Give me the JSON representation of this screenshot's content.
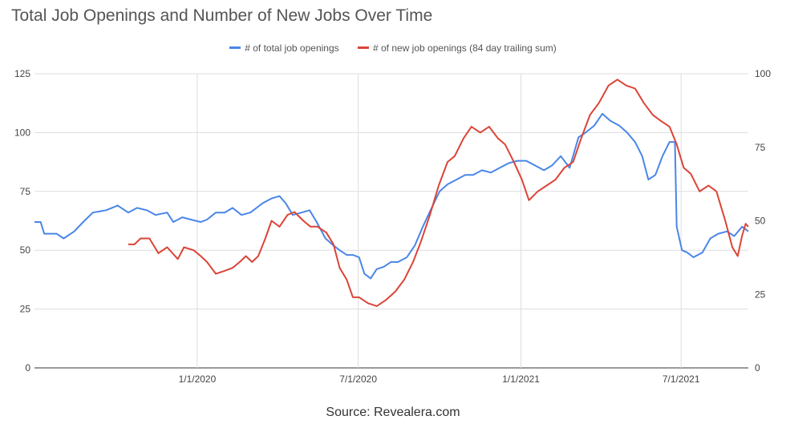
{
  "chart_data": {
    "type": "line",
    "title": "Total Job Openings and Number of New Jobs Over Time",
    "source": "Source: Revealera.com",
    "x_range": [
      "2019-07-01",
      "2021-09-15"
    ],
    "x_ticks": [
      {
        "label": "1/1/2020",
        "date": "2020-01-01"
      },
      {
        "label": "7/1/2020",
        "date": "2020-07-01"
      },
      {
        "label": "1/1/2021",
        "date": "2021-01-01"
      },
      {
        "label": "7/1/2021",
        "date": "2021-07-01"
      }
    ],
    "y_left": {
      "ylim": [
        0,
        125
      ],
      "ticks": [
        0,
        25,
        50,
        75,
        100,
        125
      ]
    },
    "y_right": {
      "ylim": [
        0,
        100
      ],
      "ticks": [
        0,
        25,
        50,
        75,
        100
      ]
    },
    "grid": true,
    "legend_position": "top",
    "series": [
      {
        "name": "# of total job openings",
        "color": "#4a86e8",
        "axis": "left",
        "points": [
          [
            "2019-07-01",
            62
          ],
          [
            "2019-07-08",
            62
          ],
          [
            "2019-07-12",
            57
          ],
          [
            "2019-07-26",
            57
          ],
          [
            "2019-08-03",
            55
          ],
          [
            "2019-08-15",
            58
          ],
          [
            "2019-08-25",
            62
          ],
          [
            "2019-09-05",
            66
          ],
          [
            "2019-09-20",
            67
          ],
          [
            "2019-10-03",
            69
          ],
          [
            "2019-10-15",
            66
          ],
          [
            "2019-10-25",
            68
          ],
          [
            "2019-11-05",
            67
          ],
          [
            "2019-11-15",
            65
          ],
          [
            "2019-11-28",
            66
          ],
          [
            "2019-12-05",
            62
          ],
          [
            "2019-12-15",
            64
          ],
          [
            "2019-12-25",
            63
          ],
          [
            "2020-01-05",
            62
          ],
          [
            "2020-01-12",
            63
          ],
          [
            "2020-01-22",
            66
          ],
          [
            "2020-02-01",
            66
          ],
          [
            "2020-02-10",
            68
          ],
          [
            "2020-02-20",
            65
          ],
          [
            "2020-03-01",
            66
          ],
          [
            "2020-03-08",
            68
          ],
          [
            "2020-03-15",
            70
          ],
          [
            "2020-03-25",
            72
          ],
          [
            "2020-04-03",
            73
          ],
          [
            "2020-04-10",
            70
          ],
          [
            "2020-04-18",
            65
          ],
          [
            "2020-04-28",
            66
          ],
          [
            "2020-05-07",
            67
          ],
          [
            "2020-05-15",
            62
          ],
          [
            "2020-05-25",
            55
          ],
          [
            "2020-06-03",
            52
          ],
          [
            "2020-06-10",
            50
          ],
          [
            "2020-06-18",
            48
          ],
          [
            "2020-06-25",
            48
          ],
          [
            "2020-07-02",
            47
          ],
          [
            "2020-07-08",
            40
          ],
          [
            "2020-07-15",
            38
          ],
          [
            "2020-07-22",
            42
          ],
          [
            "2020-07-30",
            43
          ],
          [
            "2020-08-07",
            45
          ],
          [
            "2020-08-15",
            45
          ],
          [
            "2020-08-25",
            47
          ],
          [
            "2020-09-03",
            52
          ],
          [
            "2020-09-12",
            60
          ],
          [
            "2020-09-22",
            68
          ],
          [
            "2020-10-01",
            75
          ],
          [
            "2020-10-10",
            78
          ],
          [
            "2020-10-20",
            80
          ],
          [
            "2020-10-30",
            82
          ],
          [
            "2020-11-08",
            82
          ],
          [
            "2020-11-18",
            84
          ],
          [
            "2020-11-28",
            83
          ],
          [
            "2020-12-08",
            85
          ],
          [
            "2020-12-18",
            87
          ],
          [
            "2020-12-28",
            88
          ],
          [
            "2021-01-07",
            88
          ],
          [
            "2021-01-17",
            86
          ],
          [
            "2021-01-27",
            84
          ],
          [
            "2021-02-05",
            86
          ],
          [
            "2021-02-15",
            90
          ],
          [
            "2021-02-25",
            85
          ],
          [
            "2021-03-07",
            98
          ],
          [
            "2021-03-15",
            100
          ],
          [
            "2021-03-25",
            103
          ],
          [
            "2021-04-03",
            108
          ],
          [
            "2021-04-12",
            105
          ],
          [
            "2021-04-22",
            103
          ],
          [
            "2021-05-01",
            100
          ],
          [
            "2021-05-10",
            96
          ],
          [
            "2021-05-18",
            90
          ],
          [
            "2021-05-25",
            80
          ],
          [
            "2021-06-02",
            82
          ],
          [
            "2021-06-10",
            90
          ],
          [
            "2021-06-18",
            96
          ],
          [
            "2021-06-24",
            96
          ],
          [
            "2021-06-26",
            60
          ],
          [
            "2021-07-02",
            50
          ],
          [
            "2021-07-08",
            49
          ],
          [
            "2021-07-15",
            47
          ],
          [
            "2021-07-25",
            49
          ],
          [
            "2021-08-03",
            55
          ],
          [
            "2021-08-12",
            57
          ],
          [
            "2021-08-22",
            58
          ],
          [
            "2021-08-30",
            56
          ],
          [
            "2021-09-08",
            60
          ],
          [
            "2021-09-15",
            58
          ]
        ]
      },
      {
        "name": "# of new job openings (84 day trailing sum)",
        "color": "#db4437",
        "axis": "right",
        "points": [
          [
            "2019-10-15",
            42
          ],
          [
            "2019-10-22",
            42
          ],
          [
            "2019-10-29",
            44
          ],
          [
            "2019-11-08",
            44
          ],
          [
            "2019-11-12",
            42
          ],
          [
            "2019-11-18",
            39
          ],
          [
            "2019-11-28",
            41
          ],
          [
            "2019-12-10",
            37
          ],
          [
            "2019-12-17",
            41
          ],
          [
            "2019-12-28",
            40
          ],
          [
            "2020-01-05",
            38
          ],
          [
            "2020-01-12",
            36
          ],
          [
            "2020-01-22",
            32
          ],
          [
            "2020-02-01",
            33
          ],
          [
            "2020-02-10",
            34
          ],
          [
            "2020-02-18",
            36
          ],
          [
            "2020-02-25",
            38
          ],
          [
            "2020-03-03",
            36
          ],
          [
            "2020-03-10",
            38
          ],
          [
            "2020-03-18",
            44
          ],
          [
            "2020-03-25",
            50
          ],
          [
            "2020-04-03",
            48
          ],
          [
            "2020-04-12",
            52
          ],
          [
            "2020-04-20",
            53
          ],
          [
            "2020-04-30",
            50
          ],
          [
            "2020-05-08",
            48
          ],
          [
            "2020-05-16",
            48
          ],
          [
            "2020-05-26",
            46
          ],
          [
            "2020-06-03",
            42
          ],
          [
            "2020-06-10",
            34
          ],
          [
            "2020-06-18",
            30
          ],
          [
            "2020-06-25",
            24
          ],
          [
            "2020-07-02",
            24
          ],
          [
            "2020-07-12",
            22
          ],
          [
            "2020-07-22",
            21
          ],
          [
            "2020-08-01",
            23
          ],
          [
            "2020-08-12",
            26
          ],
          [
            "2020-08-22",
            30
          ],
          [
            "2020-09-01",
            36
          ],
          [
            "2020-09-10",
            43
          ],
          [
            "2020-09-20",
            52
          ],
          [
            "2020-09-30",
            62
          ],
          [
            "2020-10-10",
            70
          ],
          [
            "2020-10-18",
            72
          ],
          [
            "2020-10-28",
            78
          ],
          [
            "2020-11-06",
            82
          ],
          [
            "2020-11-16",
            80
          ],
          [
            "2020-11-26",
            82
          ],
          [
            "2020-12-06",
            78
          ],
          [
            "2020-12-14",
            76
          ],
          [
            "2020-12-24",
            70
          ],
          [
            "2021-01-02",
            64
          ],
          [
            "2021-01-10",
            57
          ],
          [
            "2021-01-20",
            60
          ],
          [
            "2021-01-30",
            62
          ],
          [
            "2021-02-09",
            64
          ],
          [
            "2021-02-19",
            68
          ],
          [
            "2021-03-01",
            70
          ],
          [
            "2021-03-10",
            78
          ],
          [
            "2021-03-20",
            86
          ],
          [
            "2021-03-30",
            90
          ],
          [
            "2021-04-10",
            96
          ],
          [
            "2021-04-20",
            98
          ],
          [
            "2021-04-30",
            96
          ],
          [
            "2021-05-10",
            95
          ],
          [
            "2021-05-20",
            90
          ],
          [
            "2021-05-30",
            86
          ],
          [
            "2021-06-08",
            84
          ],
          [
            "2021-06-18",
            82
          ],
          [
            "2021-06-26",
            76
          ],
          [
            "2021-07-04",
            68
          ],
          [
            "2021-07-12",
            66
          ],
          [
            "2021-07-22",
            60
          ],
          [
            "2021-08-01",
            62
          ],
          [
            "2021-08-10",
            60
          ],
          [
            "2021-08-20",
            50
          ],
          [
            "2021-08-28",
            41
          ],
          [
            "2021-09-03",
            38
          ],
          [
            "2021-09-08",
            45
          ],
          [
            "2021-09-12",
            49
          ],
          [
            "2021-09-15",
            48
          ]
        ]
      }
    ]
  }
}
